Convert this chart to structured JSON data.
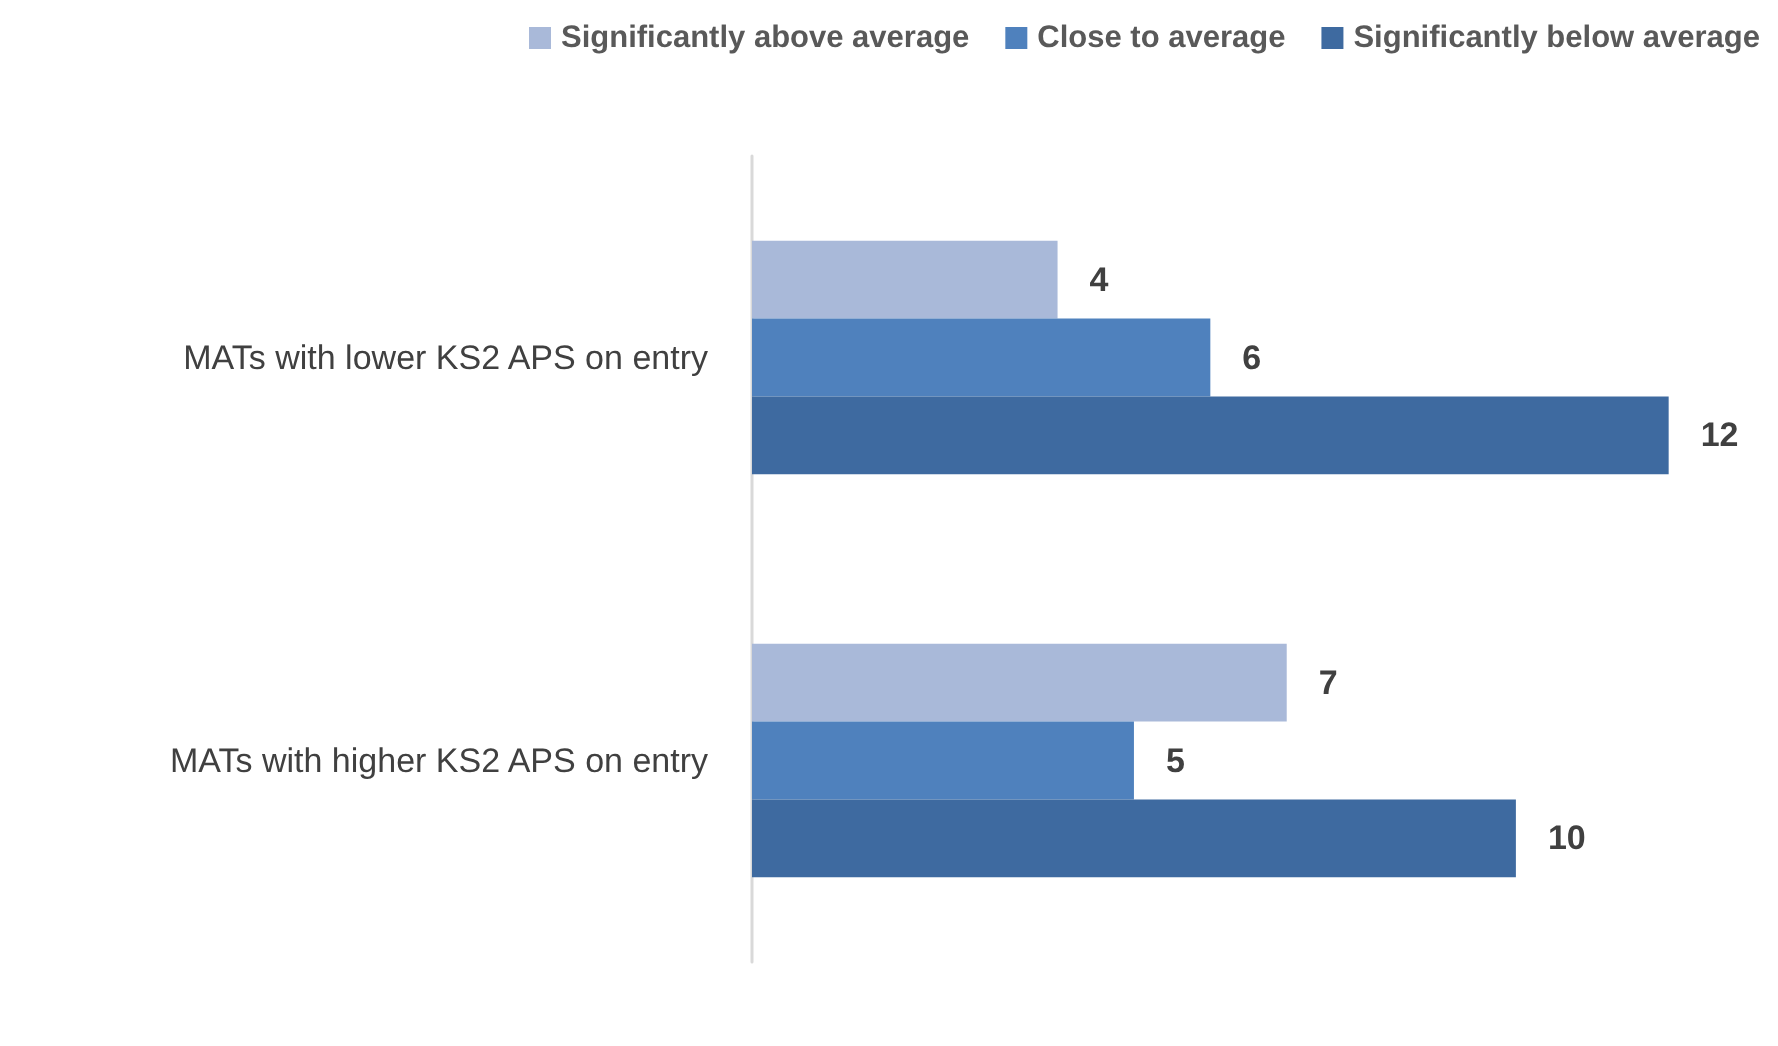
{
  "chart_data": {
    "type": "bar",
    "orientation": "horizontal",
    "categories": [
      "MATs with lower KS2 APS on entry",
      "MATs with higher KS2 APS on entry"
    ],
    "series": [
      {
        "name": "Significantly above average",
        "color": "#a9b9d9",
        "values": [
          4,
          7
        ]
      },
      {
        "name": "Close to average",
        "color": "#4f81bd",
        "values": [
          6,
          5
        ]
      },
      {
        "name": "Significantly below average",
        "color": "#3e6aa0",
        "values": [
          12,
          10
        ]
      }
    ],
    "data_labels": true,
    "legend": "top"
  }
}
